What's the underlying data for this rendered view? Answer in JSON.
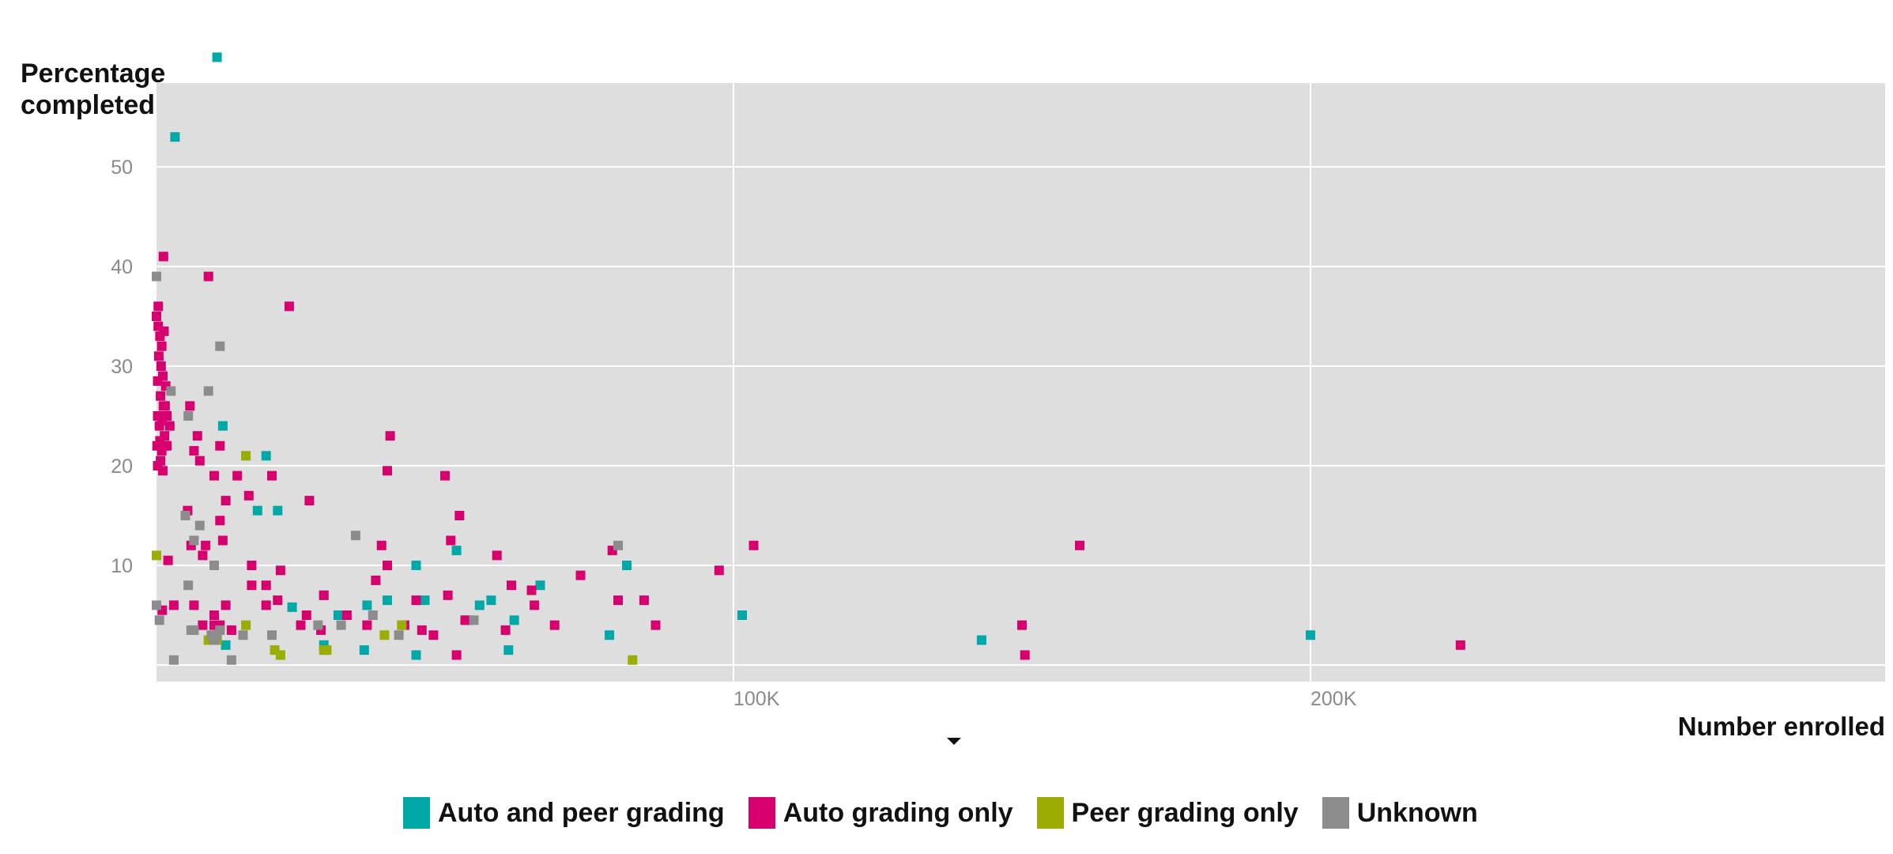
{
  "chart_data": {
    "type": "scatter",
    "ylabel": "Percentage completed",
    "xlabel": "Number enrolled",
    "xlim": [
      0,
      300000
    ],
    "ylim": [
      0,
      56
    ],
    "y_ticks": [
      10,
      20,
      30,
      40,
      50
    ],
    "x_ticks": [
      100000,
      200000
    ],
    "x_tick_labels": [
      "100K",
      "200K"
    ],
    "grid": true,
    "legend_position": "bottom",
    "series": [
      {
        "name": "Auto and peer grading",
        "color": "#00a8a8",
        "points": [
          [
            10500,
            61
          ],
          [
            3200,
            53
          ],
          [
            11500,
            24
          ],
          [
            19000,
            21
          ],
          [
            17500,
            15.5
          ],
          [
            21000,
            15.5
          ],
          [
            29000,
            7
          ],
          [
            23500,
            5.8
          ],
          [
            29000,
            2
          ],
          [
            31500,
            5
          ],
          [
            36500,
            6
          ],
          [
            40000,
            6.5
          ],
          [
            45000,
            10
          ],
          [
            46500,
            6.5
          ],
          [
            52000,
            11.5
          ],
          [
            54000,
            4.5
          ],
          [
            56000,
            6
          ],
          [
            58000,
            6.5
          ],
          [
            62000,
            4.5
          ],
          [
            66500,
            8
          ],
          [
            36000,
            1.5
          ],
          [
            45000,
            1
          ],
          [
            61000,
            1.5
          ],
          [
            78500,
            3
          ],
          [
            81500,
            10
          ],
          [
            12000,
            2
          ],
          [
            101500,
            5
          ],
          [
            143000,
            2.5
          ],
          [
            200000,
            3
          ]
        ]
      },
      {
        "name": "Auto grading only",
        "color": "#d8006e",
        "points": [
          [
            0,
            35
          ],
          [
            300,
            34
          ],
          [
            600,
            33
          ],
          [
            900,
            32
          ],
          [
            1300,
            33.5
          ],
          [
            400,
            31
          ],
          [
            800,
            30
          ],
          [
            1100,
            29
          ],
          [
            200,
            28.5
          ],
          [
            700,
            27
          ],
          [
            1200,
            26
          ],
          [
            1500,
            26
          ],
          [
            200,
            25
          ],
          [
            500,
            24
          ],
          [
            1000,
            24.5
          ],
          [
            1400,
            23
          ],
          [
            100,
            22
          ],
          [
            600,
            22.5
          ],
          [
            900,
            21.5
          ],
          [
            1300,
            22
          ],
          [
            200,
            20
          ],
          [
            700,
            20.5
          ],
          [
            1100,
            19.5
          ],
          [
            1800,
            22
          ],
          [
            300,
            36
          ],
          [
            1200,
            41
          ],
          [
            1800,
            25
          ],
          [
            1600,
            28
          ],
          [
            2300,
            24
          ],
          [
            5800,
            26
          ],
          [
            6500,
            21.5
          ],
          [
            7100,
            23
          ],
          [
            7500,
            20.5
          ],
          [
            9000,
            39
          ],
          [
            10000,
            19
          ],
          [
            11000,
            22
          ],
          [
            12000,
            16.5
          ],
          [
            14000,
            19
          ],
          [
            16000,
            17
          ],
          [
            20000,
            19
          ],
          [
            23000,
            36
          ],
          [
            26500,
            16.5
          ],
          [
            11500,
            12.5
          ],
          [
            11000,
            14.5
          ],
          [
            6000,
            12
          ],
          [
            5400,
            15.5
          ],
          [
            8500,
            12
          ],
          [
            8000,
            11
          ],
          [
            2000,
            10.5
          ],
          [
            10000,
            10
          ],
          [
            12000,
            6
          ],
          [
            10000,
            5
          ],
          [
            16500,
            10
          ],
          [
            16500,
            8
          ],
          [
            19000,
            8
          ],
          [
            19000,
            6
          ],
          [
            21000,
            6.5
          ],
          [
            21500,
            9.5
          ],
          [
            25000,
            4
          ],
          [
            26000,
            5
          ],
          [
            28500,
            3.5
          ],
          [
            29000,
            7
          ],
          [
            33000,
            5
          ],
          [
            36500,
            4
          ],
          [
            38000,
            8.5
          ],
          [
            40000,
            10
          ],
          [
            39000,
            12
          ],
          [
            40500,
            23
          ],
          [
            40000,
            19.5
          ],
          [
            43000,
            4
          ],
          [
            45000,
            6.5
          ],
          [
            46000,
            3.5
          ],
          [
            48000,
            3
          ],
          [
            50000,
            19
          ],
          [
            50500,
            7
          ],
          [
            51000,
            12.5
          ],
          [
            52500,
            15
          ],
          [
            52000,
            1
          ],
          [
            53500,
            4.5
          ],
          [
            60500,
            3.5
          ],
          [
            59000,
            11
          ],
          [
            61500,
            8
          ],
          [
            65000,
            7.5
          ],
          [
            65500,
            6
          ],
          [
            69000,
            4
          ],
          [
            73500,
            9
          ],
          [
            79000,
            11.5
          ],
          [
            80000,
            6.5
          ],
          [
            84500,
            6.5
          ],
          [
            86500,
            4
          ],
          [
            97500,
            9.5
          ],
          [
            103500,
            12
          ],
          [
            150000,
            4
          ],
          [
            150500,
            1
          ],
          [
            160000,
            12
          ],
          [
            226000,
            2
          ],
          [
            1000,
            5.5
          ],
          [
            3000,
            6
          ],
          [
            6500,
            6
          ],
          [
            8000,
            4
          ],
          [
            10000,
            4
          ],
          [
            13000,
            3.5
          ],
          [
            11000,
            4
          ]
        ]
      },
      {
        "name": "Peer grading only",
        "color": "#9aad00",
        "points": [
          [
            15500,
            21
          ],
          [
            0,
            11
          ],
          [
            9000,
            2.5
          ],
          [
            10500,
            2.5
          ],
          [
            15500,
            4
          ],
          [
            20500,
            1.5
          ],
          [
            21500,
            1
          ],
          [
            29000,
            1.5
          ],
          [
            29500,
            1.5
          ],
          [
            39500,
            3
          ],
          [
            42500,
            4
          ],
          [
            82500,
            0.5
          ]
        ]
      },
      {
        "name": "Unknown",
        "color": "#8c8c8c",
        "points": [
          [
            0,
            39
          ],
          [
            11000,
            32
          ],
          [
            2500,
            27.5
          ],
          [
            9000,
            27.5
          ],
          [
            5500,
            25
          ],
          [
            5000,
            15
          ],
          [
            7500,
            14
          ],
          [
            6500,
            12.5
          ],
          [
            10000,
            10
          ],
          [
            5500,
            8
          ],
          [
            0,
            6
          ],
          [
            500,
            4.5
          ],
          [
            6000,
            3.5
          ],
          [
            6500,
            3.5
          ],
          [
            9500,
            3
          ],
          [
            10500,
            3
          ],
          [
            11000,
            3.5
          ],
          [
            13000,
            0.5
          ],
          [
            3000,
            0.5
          ],
          [
            15000,
            3
          ],
          [
            20000,
            3
          ],
          [
            28000,
            4
          ],
          [
            32000,
            4
          ],
          [
            34500,
            13
          ],
          [
            37500,
            5
          ],
          [
            42000,
            3
          ],
          [
            55000,
            4.5
          ],
          [
            80000,
            12
          ],
          [
            10000,
            2.5
          ]
        ]
      }
    ]
  }
}
